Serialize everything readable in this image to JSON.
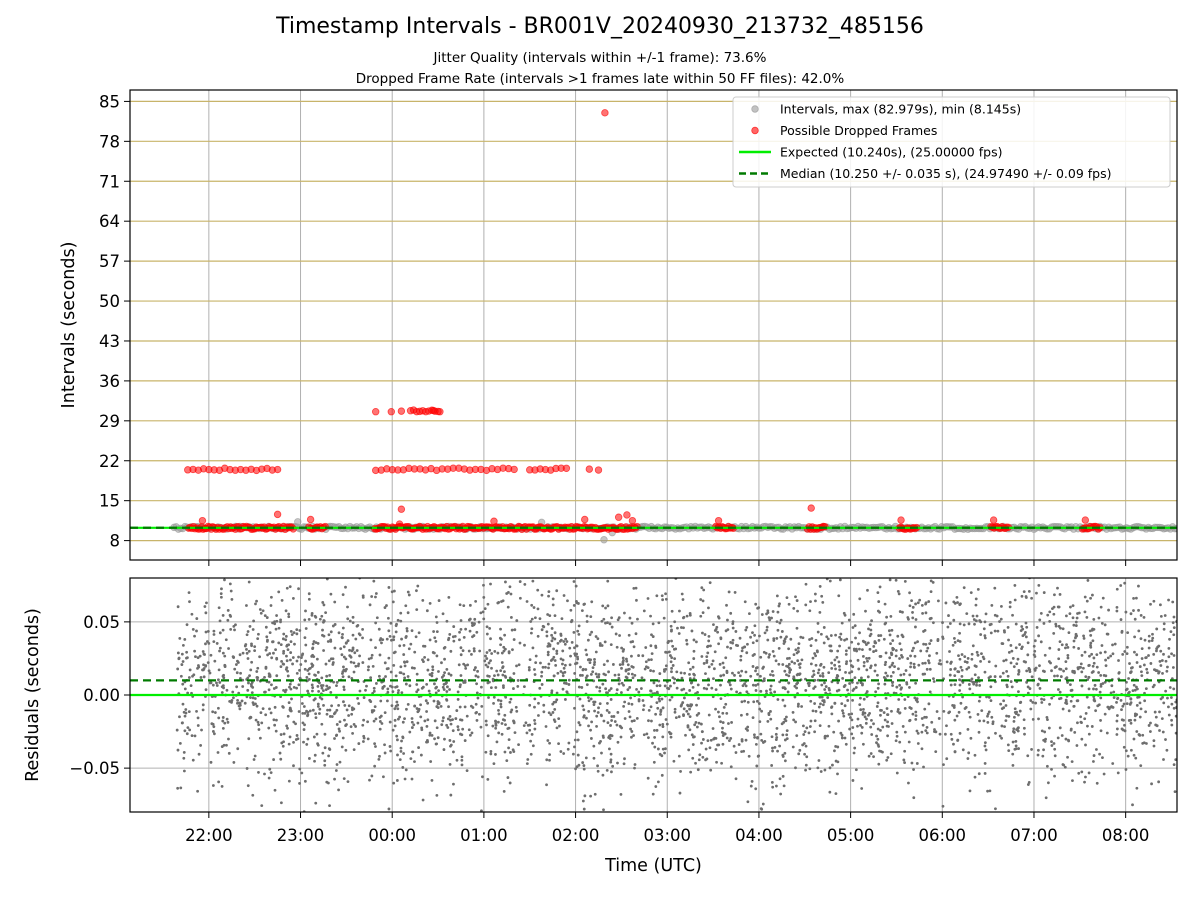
{
  "chart_data": [
    {
      "type": "scatter",
      "title": "Timestamp Intervals - BR001V_20240930_213732_485156",
      "subtitle_lines": [
        "Jitter Quality (intervals within +/-1 frame): 73.6%",
        "Dropped Frame Rate (intervals >1 frames late within 50 FF files): 42.0%"
      ],
      "xlabel": "",
      "ylabel": "Intervals (seconds)",
      "x_range_hours": [
        21.14,
        32.56
      ],
      "ylim": [
        4.6,
        87.0
      ],
      "y_ticks": [
        8,
        15,
        22,
        29,
        36,
        43,
        50,
        57,
        64,
        71,
        78,
        85
      ],
      "y_tick_labels": [
        "8",
        "15",
        "22",
        "29",
        "36",
        "43",
        "50",
        "57",
        "64",
        "71",
        "78",
        "85"
      ],
      "grid": true,
      "legend_position": "upper right",
      "legend": [
        {
          "label": "Intervals, max (82.979s), min (8.145s)",
          "kind": "marker",
          "color": "#999999"
        },
        {
          "label": "Possible Dropped Frames",
          "kind": "marker",
          "color": "#ff0000"
        },
        {
          "label": "Expected (10.240s), (25.00000 fps)",
          "kind": "solid",
          "color": "#00ee00"
        },
        {
          "label": "Median (10.250 +/- 0.035 s), (24.97490 +/- 0.09 fps)",
          "kind": "dashed",
          "color": "#007a00"
        }
      ],
      "expected_interval": 10.24,
      "median_interval": 10.25,
      "series": [
        {
          "name": "Intervals, max (82.979s), min (8.145s)",
          "color": "#999999",
          "bands": [
            {
              "x_start": 21.62,
              "x_end": 32.56,
              "y": 10.24,
              "spread": 0.5
            }
          ],
          "points": [
            {
              "x": 22.97,
              "y": 11.3
            },
            {
              "x": 25.63,
              "y": 11.2
            },
            {
              "x": 26.4,
              "y": 9.4
            },
            {
              "x": 26.31,
              "y": 8.15
            }
          ]
        },
        {
          "name": "Possible Dropped Frames",
          "color": "#ff0000",
          "bands": [
            {
              "x_start": 21.78,
              "x_end": 22.92,
              "y": 10.24,
              "spread": 0.5
            },
            {
              "x_start": 23.09,
              "x_end": 23.27,
              "y": 10.24,
              "spread": 0.5
            },
            {
              "x_start": 23.81,
              "x_end": 26.67,
              "y": 10.24,
              "spread": 0.5
            },
            {
              "x_start": 27.53,
              "x_end": 27.72,
              "y": 10.24,
              "spread": 0.5
            },
            {
              "x_start": 28.53,
              "x_end": 28.72,
              "y": 10.24,
              "spread": 0.5
            },
            {
              "x_start": 29.53,
              "x_end": 29.72,
              "y": 10.24,
              "spread": 0.5
            },
            {
              "x_start": 30.53,
              "x_end": 30.72,
              "y": 10.24,
              "spread": 0.5
            },
            {
              "x_start": 31.53,
              "x_end": 31.72,
              "y": 10.24,
              "spread": 0.5
            }
          ],
          "rows": [
            {
              "x_start": 21.77,
              "x_end": 22.75,
              "y": 20.5,
              "count": 18
            },
            {
              "x_start": 23.82,
              "x_end": 25.33,
              "y": 20.5,
              "count": 26
            },
            {
              "x_start": 25.5,
              "x_end": 25.9,
              "y": 20.5,
              "count": 8
            },
            {
              "x_start": 26.15,
              "x_end": 26.25,
              "y": 20.5,
              "count": 2
            },
            {
              "x_start": 24.2,
              "x_end": 24.5,
              "y": 30.8,
              "count": 10
            }
          ],
          "points": [
            {
              "x": 26.32,
              "y": 83.0
            },
            {
              "x": 23.82,
              "y": 30.6
            },
            {
              "x": 23.99,
              "y": 30.6
            },
            {
              "x": 24.1,
              "y": 30.7
            },
            {
              "x": 24.45,
              "y": 30.8
            },
            {
              "x": 24.52,
              "y": 30.6
            },
            {
              "x": 24.1,
              "y": 13.5
            },
            {
              "x": 21.93,
              "y": 11.5
            },
            {
              "x": 22.75,
              "y": 12.6
            },
            {
              "x": 23.11,
              "y": 11.7
            },
            {
              "x": 25.11,
              "y": 11.4
            },
            {
              "x": 26.1,
              "y": 11.7
            },
            {
              "x": 26.47,
              "y": 12.1
            },
            {
              "x": 26.56,
              "y": 12.5
            },
            {
              "x": 26.62,
              "y": 11.5
            },
            {
              "x": 27.56,
              "y": 11.5
            },
            {
              "x": 28.57,
              "y": 13.7
            },
            {
              "x": 29.55,
              "y": 11.6
            },
            {
              "x": 30.56,
              "y": 11.6
            },
            {
              "x": 31.56,
              "y": 11.6
            },
            {
              "x": 24.08,
              "y": 10.9
            }
          ]
        }
      ]
    },
    {
      "type": "scatter",
      "xlabel": "Time (UTC)",
      "ylabel": "Residuals (seconds)",
      "x_range_hours": [
        21.14,
        32.56
      ],
      "ylim": [
        -0.08,
        0.08
      ],
      "y_ticks": [
        -0.05,
        0.0,
        0.05
      ],
      "y_tick_labels": [
        "−0.05",
        "0.00",
        "0.05"
      ],
      "x_ticks_hours": [
        22,
        23,
        24,
        25,
        26,
        27,
        28,
        29,
        30,
        31,
        32
      ],
      "x_tick_labels": [
        "22:00",
        "23:00",
        "00:00",
        "01:00",
        "02:00",
        "03:00",
        "04:00",
        "05:00",
        "06:00",
        "07:00",
        "08:00"
      ],
      "grid": true,
      "reference_lines": [
        {
          "y": 0.0,
          "color": "#00ee00",
          "style": "solid"
        },
        {
          "y": 0.01,
          "color": "#007a00",
          "style": "dashed"
        }
      ],
      "series": [
        {
          "name": "",
          "color": "#6e6e6e",
          "scatter_summary": {
            "x_start": 21.65,
            "x_end": 32.56,
            "center": 0.01,
            "std": 0.035,
            "count": 3800
          }
        }
      ]
    }
  ]
}
